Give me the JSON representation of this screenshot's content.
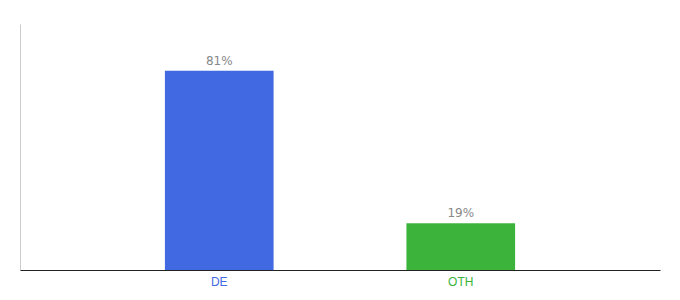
{
  "chart_data": {
    "type": "bar",
    "categories": [
      "DE",
      "OTH"
    ],
    "values": [
      81,
      19
    ],
    "value_labels": [
      "81%",
      "19%"
    ],
    "colors": [
      "#4169e1",
      "#3cb43c"
    ],
    "ylim": [
      0,
      100
    ],
    "grid": false,
    "data_labels": true,
    "tick_labels": "x"
  }
}
